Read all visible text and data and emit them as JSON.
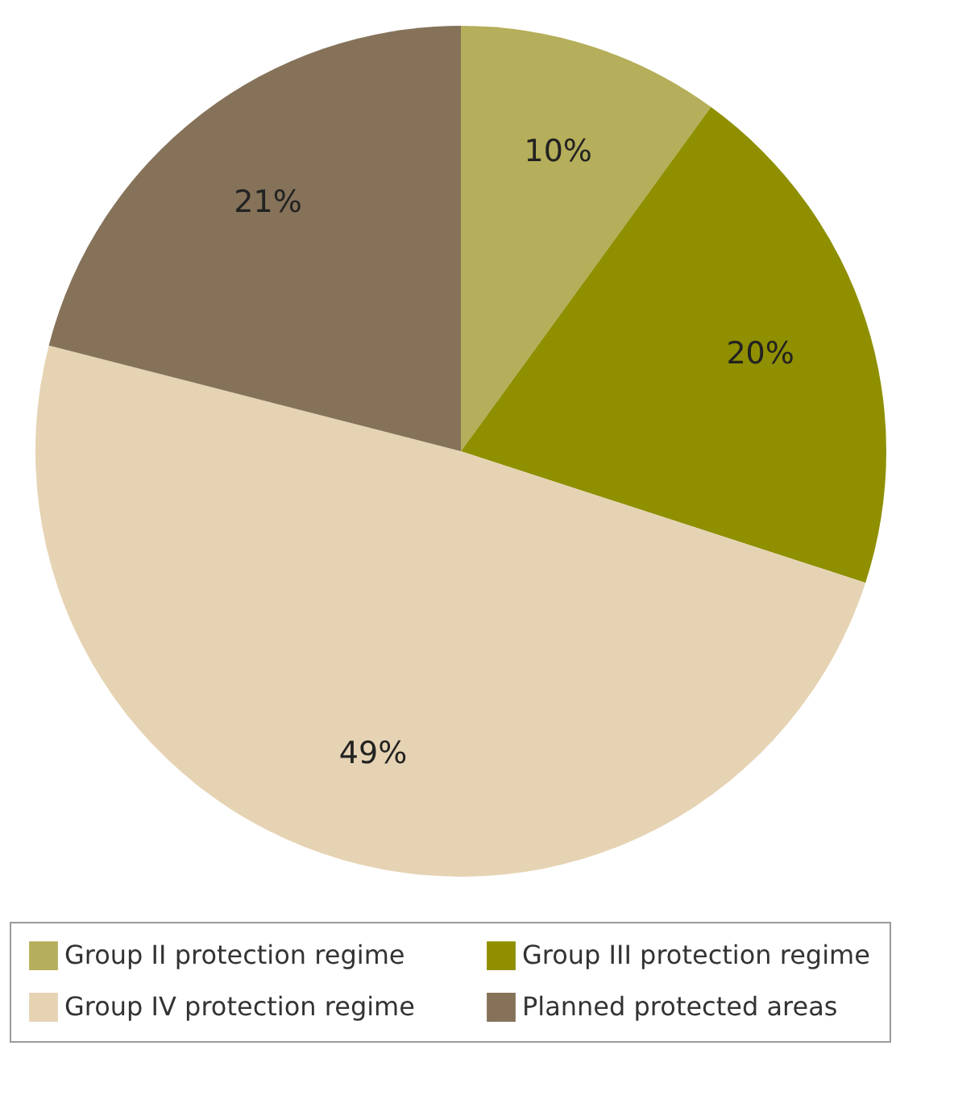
{
  "chart_data": {
    "type": "pie",
    "categories": [
      "Group II protection regime",
      "Group III protection regime",
      "Group IV protection regime",
      "Planned protected areas"
    ],
    "values": [
      10,
      20,
      49,
      21
    ],
    "value_labels": [
      "10%",
      "20%",
      "49%",
      "21%"
    ],
    "colors": [
      "#b5ae5a",
      "#8f8f00",
      "#e6d3b3",
      "#857259"
    ],
    "legend": "bottom"
  }
}
